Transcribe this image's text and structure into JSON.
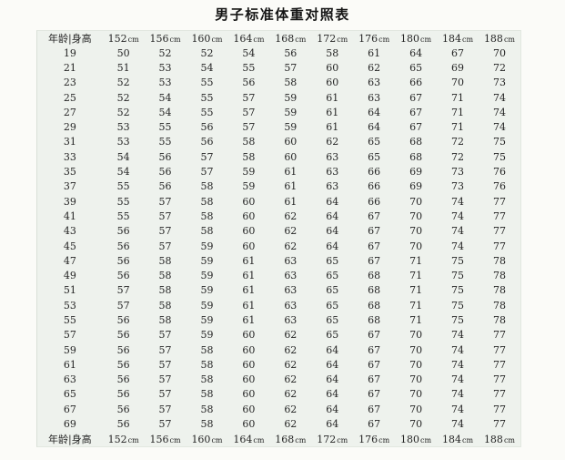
{
  "title": "男子标准体重对照表",
  "table": {
    "corner_label": "年龄|身高",
    "unit": "cm",
    "heights": [
      "152",
      "156",
      "160",
      "164",
      "168",
      "172",
      "176",
      "180",
      "184",
      "188"
    ],
    "rows": [
      {
        "age": "19",
        "weights": [
          50,
          52,
          52,
          54,
          56,
          58,
          61,
          64,
          67,
          70
        ]
      },
      {
        "age": "21",
        "weights": [
          51,
          53,
          54,
          55,
          57,
          60,
          62,
          65,
          69,
          72
        ]
      },
      {
        "age": "23",
        "weights": [
          52,
          53,
          55,
          56,
          58,
          60,
          63,
          66,
          70,
          73
        ]
      },
      {
        "age": "25",
        "weights": [
          52,
          54,
          55,
          57,
          59,
          61,
          63,
          67,
          71,
          74
        ]
      },
      {
        "age": "27",
        "weights": [
          52,
          54,
          55,
          57,
          59,
          61,
          64,
          67,
          71,
          74
        ]
      },
      {
        "age": "29",
        "weights": [
          53,
          55,
          56,
          57,
          59,
          61,
          64,
          67,
          71,
          74
        ]
      },
      {
        "age": "31",
        "weights": [
          53,
          55,
          56,
          58,
          60,
          62,
          65,
          68,
          72,
          75
        ]
      },
      {
        "age": "33",
        "weights": [
          54,
          56,
          57,
          58,
          60,
          63,
          65,
          68,
          72,
          75
        ]
      },
      {
        "age": "35",
        "weights": [
          54,
          56,
          57,
          59,
          61,
          63,
          66,
          69,
          73,
          76
        ]
      },
      {
        "age": "37",
        "weights": [
          55,
          56,
          58,
          59,
          61,
          63,
          66,
          69,
          73,
          76
        ]
      },
      {
        "age": "39",
        "weights": [
          55,
          57,
          58,
          60,
          61,
          64,
          66,
          70,
          74,
          77
        ]
      },
      {
        "age": "41",
        "weights": [
          55,
          57,
          58,
          60,
          62,
          64,
          67,
          70,
          74,
          77
        ]
      },
      {
        "age": "43",
        "weights": [
          56,
          57,
          58,
          60,
          62,
          64,
          67,
          70,
          74,
          77
        ]
      },
      {
        "age": "45",
        "weights": [
          56,
          57,
          59,
          60,
          62,
          64,
          67,
          70,
          74,
          77
        ]
      },
      {
        "age": "47",
        "weights": [
          56,
          58,
          59,
          61,
          63,
          65,
          67,
          71,
          75,
          78
        ]
      },
      {
        "age": "49",
        "weights": [
          56,
          58,
          59,
          61,
          63,
          65,
          68,
          71,
          75,
          78
        ]
      },
      {
        "age": "51",
        "weights": [
          57,
          58,
          59,
          61,
          63,
          65,
          68,
          71,
          75,
          78
        ]
      },
      {
        "age": "53",
        "weights": [
          57,
          58,
          59,
          61,
          63,
          65,
          68,
          71,
          75,
          78
        ]
      },
      {
        "age": "55",
        "weights": [
          56,
          58,
          59,
          61,
          63,
          65,
          68,
          71,
          75,
          78
        ]
      },
      {
        "age": "57",
        "weights": [
          56,
          57,
          59,
          60,
          62,
          65,
          67,
          70,
          74,
          77
        ]
      },
      {
        "age": "59",
        "weights": [
          56,
          57,
          58,
          60,
          62,
          64,
          67,
          70,
          74,
          77
        ]
      },
      {
        "age": "61",
        "weights": [
          56,
          57,
          58,
          60,
          62,
          64,
          67,
          70,
          74,
          77
        ]
      },
      {
        "age": "63",
        "weights": [
          56,
          57,
          58,
          60,
          62,
          64,
          67,
          70,
          74,
          77
        ]
      },
      {
        "age": "65",
        "weights": [
          56,
          57,
          58,
          60,
          62,
          64,
          67,
          70,
          74,
          77
        ]
      },
      {
        "age": "67",
        "weights": [
          56,
          57,
          58,
          60,
          62,
          64,
          67,
          70,
          74,
          77
        ]
      },
      {
        "age": "69",
        "weights": [
          56,
          57,
          58,
          60,
          62,
          64,
          67,
          70,
          74,
          77
        ]
      }
    ]
  },
  "colors": {
    "table_background": "#eef2ed",
    "page_background": "#fbfbf8",
    "text": "#252525",
    "title_text": "#151515",
    "border": "#e2e7e0"
  }
}
